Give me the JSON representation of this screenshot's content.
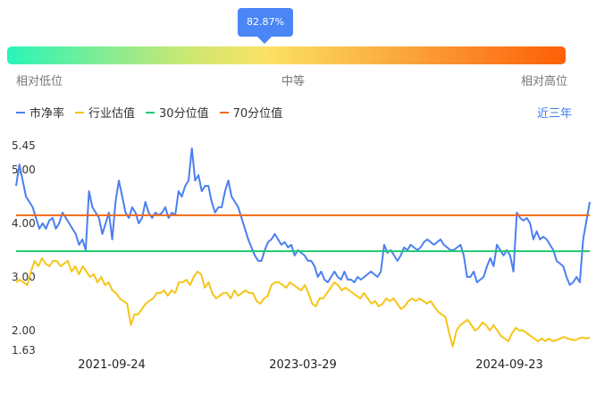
{
  "gauge": {
    "percentile_label": "82.87%",
    "percentile_value": 82.87,
    "low_label": "相对低位",
    "mid_label": "中等",
    "high_label": "相对高位"
  },
  "range_button": "近三年",
  "chart_data": {
    "type": "line",
    "ylim": [
      1.63,
      5.45
    ],
    "yticks": [
      "5.45",
      "5.00",
      "4.00",
      "3.00",
      "2.00",
      "1.63"
    ],
    "x_labels": [
      "2021-09-24",
      "2023-03-29",
      "2024-09-23"
    ],
    "series": [
      {
        "name": "市净率",
        "color": "#4a7ff0",
        "values": [
          4.7,
          5.1,
          4.8,
          4.5,
          4.4,
          4.3,
          4.1,
          3.9,
          4.0,
          3.9,
          4.05,
          4.1,
          3.9,
          4.0,
          4.2,
          4.1,
          4.0,
          3.9,
          3.8,
          3.6,
          3.7,
          3.5,
          4.6,
          4.3,
          4.2,
          4.1,
          3.8,
          4.0,
          4.2,
          3.7,
          4.4,
          4.8,
          4.5,
          4.2,
          4.1,
          4.3,
          4.2,
          4.0,
          4.1,
          4.4,
          4.2,
          4.1,
          4.2,
          4.15,
          4.2,
          4.3,
          4.1,
          4.2,
          4.15,
          4.6,
          4.5,
          4.7,
          4.8,
          5.4,
          4.8,
          4.9,
          4.6,
          4.7,
          4.7,
          4.4,
          4.2,
          4.3,
          4.3,
          4.6,
          4.8,
          4.5,
          4.4,
          4.3,
          4.1,
          3.9,
          3.7,
          3.55,
          3.4,
          3.3,
          3.3,
          3.5,
          3.65,
          3.7,
          3.8,
          3.7,
          3.6,
          3.65,
          3.55,
          3.6,
          3.4,
          3.5,
          3.45,
          3.4,
          3.3,
          3.3,
          3.2,
          3.0,
          3.1,
          2.95,
          2.9,
          3.0,
          3.1,
          3.0,
          2.95,
          3.1,
          2.95,
          2.95,
          2.9,
          3.0,
          2.95,
          3.0,
          3.05,
          3.1,
          3.05,
          3.0,
          3.1,
          3.6,
          3.45,
          3.5,
          3.4,
          3.3,
          3.4,
          3.55,
          3.5,
          3.6,
          3.55,
          3.5,
          3.55,
          3.65,
          3.7,
          3.65,
          3.6,
          3.65,
          3.7,
          3.6,
          3.55,
          3.5,
          3.5,
          3.55,
          3.6,
          3.4,
          3.0,
          3.0,
          3.1,
          2.9,
          2.95,
          3.0,
          3.2,
          3.35,
          3.2,
          3.6,
          3.5,
          3.4,
          3.5,
          3.4,
          3.1,
          4.2,
          4.1,
          4.05,
          4.1,
          4.0,
          3.7,
          3.85,
          3.7,
          3.75,
          3.7,
          3.6,
          3.5,
          3.3,
          3.25,
          3.2,
          3.0,
          2.85,
          2.9,
          3.0,
          2.9,
          3.7,
          4.05,
          4.4
        ]
      },
      {
        "name": "行业估值",
        "color": "#f5c518",
        "values": [
          2.9,
          2.95,
          2.9,
          2.85,
          3.1,
          3.3,
          3.2,
          3.35,
          3.25,
          3.2,
          3.3,
          3.3,
          3.2,
          3.25,
          3.3,
          3.1,
          3.2,
          3.05,
          3.2,
          3.1,
          3.0,
          3.05,
          2.9,
          3.0,
          2.85,
          2.9,
          2.75,
          2.7,
          2.6,
          2.55,
          2.5,
          2.1,
          2.3,
          2.3,
          2.4,
          2.5,
          2.55,
          2.6,
          2.7,
          2.7,
          2.75,
          2.65,
          2.75,
          2.7,
          2.9,
          2.9,
          2.95,
          2.85,
          3.0,
          3.1,
          3.05,
          2.8,
          2.9,
          2.7,
          2.6,
          2.65,
          2.7,
          2.7,
          2.6,
          2.75,
          2.65,
          2.7,
          2.75,
          2.7,
          2.7,
          2.55,
          2.5,
          2.6,
          2.65,
          2.85,
          2.9,
          2.9,
          2.85,
          2.8,
          2.9,
          2.85,
          2.8,
          2.75,
          2.85,
          2.7,
          2.5,
          2.45,
          2.6,
          2.6,
          2.7,
          2.8,
          2.9,
          2.85,
          2.75,
          2.8,
          2.75,
          2.7,
          2.65,
          2.6,
          2.7,
          2.6,
          2.5,
          2.55,
          2.45,
          2.5,
          2.6,
          2.55,
          2.6,
          2.5,
          2.4,
          2.45,
          2.55,
          2.6,
          2.55,
          2.6,
          2.55,
          2.5,
          2.55,
          2.45,
          2.35,
          2.3,
          2.25,
          1.95,
          1.7,
          2.0,
          2.1,
          2.15,
          2.2,
          2.1,
          2.0,
          2.05,
          2.15,
          2.1,
          2.0,
          2.1,
          2.0,
          1.9,
          1.85,
          1.8,
          1.95,
          2.05,
          2.0,
          2.0,
          1.95,
          1.9,
          1.85,
          1.8,
          1.85,
          1.8,
          1.85,
          1.8,
          1.82,
          1.85,
          1.88,
          1.85,
          1.83,
          1.82,
          1.85,
          1.87,
          1.85,
          1.87
        ]
      },
      {
        "name": "30分位值",
        "color": "#1ec873",
        "values": [
          3.48
        ]
      },
      {
        "name": "70分位值",
        "color": "#f06a14",
        "values": [
          4.15
        ]
      }
    ]
  }
}
